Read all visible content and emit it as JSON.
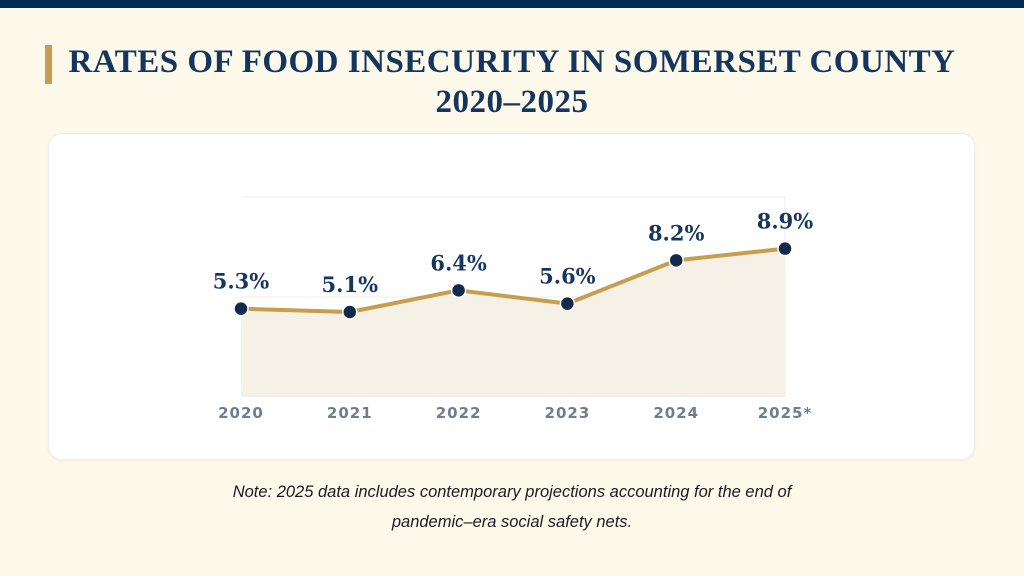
{
  "page": {
    "top_bar_color": "#032a52",
    "background_color": "#fcf9ea"
  },
  "header": {
    "title_line1": "RATES OF FOOD INSECURITY IN SOMERSET COUNTY",
    "title_line2": "2020–2025",
    "accent_color": "#c79e4e",
    "title_color": "#14355e"
  },
  "chart_data": {
    "type": "line",
    "title": "",
    "xlabel": "",
    "ylabel": "",
    "categories": [
      "2020",
      "2021",
      "2022",
      "2023",
      "2024",
      "2025*"
    ],
    "values": [
      5.3,
      5.1,
      6.4,
      5.6,
      8.2,
      8.9
    ],
    "labels": [
      "5.3%",
      "5.1%",
      "6.4%",
      "5.6%",
      "8.2%",
      "8.9%"
    ],
    "ylim": [
      0,
      12
    ],
    "gridline_values": [
      6,
      12
    ],
    "grid_on": true,
    "legend_position": "none",
    "area_filled_to_zero": true,
    "line_color": "#c79e4e",
    "fill_color": "#f6f1e6",
    "point_color": "#142a4d",
    "gridline_color": "#ececec",
    "label_color": "#16355f",
    "axis_label_color": "#6e7c95"
  },
  "note": {
    "lines": [
      "Note: 2025 data includes contemporary projections accounting for the end of",
      "pandemic–era social safety nets."
    ]
  }
}
